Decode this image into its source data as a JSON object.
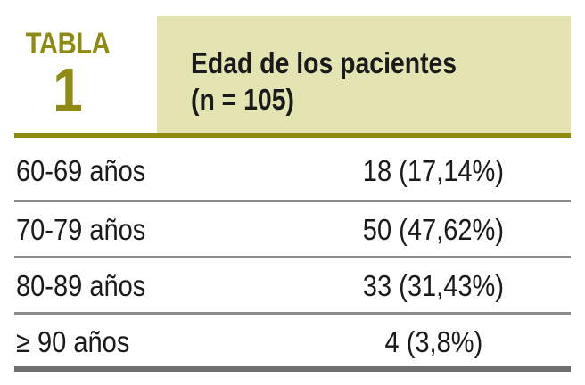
{
  "table": {
    "label_word": "TABLA",
    "label_number": "1",
    "title_line1": "Edad de los pacientes",
    "title_line2": "(n = 105)",
    "accent_color": "#8f8a12",
    "header_background": "#e3e4b1",
    "rows": [
      {
        "label": "60-69 años",
        "value": "18 (17,14%)"
      },
      {
        "label": "70-79 años",
        "value": "50 (47,62%)"
      },
      {
        "label": "80-89 años",
        "value": "33 (31,43%)"
      },
      {
        "label": "≥ 90 años",
        "value": "4 (3,8%)"
      }
    ]
  }
}
